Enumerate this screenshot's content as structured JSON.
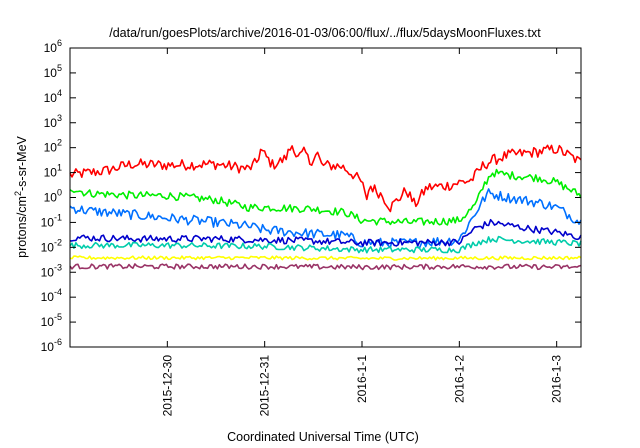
{
  "chart_data": {
    "type": "line",
    "title": "/data/run/goesPlots/archive/2016-01-03/06:00/flux/../flux/5daysMoonFluxes.txt",
    "xlabel": "Coordinated Universal Time (UTC)",
    "ylabel_parts": {
      "base": "protons/cm",
      "sup": "2",
      "rest": "-s-sr-MeV"
    },
    "x_unit": "days",
    "x_range": [
      "2015-12-29T00:00",
      "2016-01-03T06:00"
    ],
    "x_ticks": [
      {
        "date": "2015-12-30",
        "label": "2015-12-30"
      },
      {
        "date": "2015-12-31",
        "label": "2015-12-31"
      },
      {
        "date": "2016-01-01",
        "label": "2016-1-1"
      },
      {
        "date": "2016-01-02",
        "label": "2016-1-2"
      },
      {
        "date": "2016-01-03",
        "label": "2016-1-3"
      }
    ],
    "y_scale": "log",
    "ylim": [
      1e-06,
      1000000.0
    ],
    "y_ticks": [
      {
        "value": 1000000.0,
        "base": "10",
        "exp": "6"
      },
      {
        "value": 100000.0,
        "base": "10",
        "exp": "5"
      },
      {
        "value": 10000.0,
        "base": "10",
        "exp": "4"
      },
      {
        "value": 1000.0,
        "base": "10",
        "exp": "3"
      },
      {
        "value": 100.0,
        "base": "10",
        "exp": "2"
      },
      {
        "value": 10.0,
        "base": "10",
        "exp": "1"
      },
      {
        "value": 1.0,
        "base": "10",
        "exp": "0"
      },
      {
        "value": 0.1,
        "base": "10",
        "exp": "-1"
      },
      {
        "value": 0.01,
        "base": "10",
        "exp": "-2"
      },
      {
        "value": 0.001,
        "base": "10",
        "exp": "-3"
      },
      {
        "value": 0.0001,
        "base": "10",
        "exp": "-4"
      },
      {
        "value": 1e-05,
        "base": "10",
        "exp": "-5"
      },
      {
        "value": 1e-06,
        "base": "10",
        "exp": "-6"
      }
    ],
    "grid": false,
    "series": [
      {
        "color": "#ff0000",
        "noise": 0.22,
        "points": [
          [
            "2015-12-29T00:00",
            8
          ],
          [
            "2015-12-29T09:00",
            12
          ],
          [
            "2015-12-29T15:00",
            22
          ],
          [
            "2015-12-30T00:00",
            20
          ],
          [
            "2015-12-30T12:00",
            22
          ],
          [
            "2015-12-30T20:00",
            14
          ],
          [
            "2015-12-30T22:00",
            25
          ],
          [
            "2015-12-30T23:00",
            80
          ],
          [
            "2015-12-31T02:00",
            20
          ],
          [
            "2015-12-31T05:00",
            35
          ],
          [
            "2015-12-31T07:00",
            150
          ],
          [
            "2015-12-31T08:00",
            35
          ],
          [
            "2015-12-31T10:00",
            70
          ],
          [
            "2015-12-31T11:00",
            25
          ],
          [
            "2015-12-31T13:00",
            60
          ],
          [
            "2015-12-31T14:00",
            20
          ],
          [
            "2015-12-31T19:00",
            18
          ],
          [
            "2015-12-31T22:00",
            8
          ],
          [
            "2016-01-01T00:00",
            4
          ],
          [
            "2016-01-01T01:00",
            0.8
          ],
          [
            "2016-01-01T02:00",
            3
          ],
          [
            "2016-01-01T05:00",
            1.2
          ],
          [
            "2016-01-01T07:00",
            0.4
          ],
          [
            "2016-01-01T11:00",
            2
          ],
          [
            "2016-01-01T13:00",
            0.5
          ],
          [
            "2016-01-01T16:00",
            2.5
          ],
          [
            "2016-01-01T21:00",
            3
          ],
          [
            "2016-01-02T00:00",
            4
          ],
          [
            "2016-01-02T03:00",
            5
          ],
          [
            "2016-01-02T06:00",
            20
          ],
          [
            "2016-01-02T08:00",
            30
          ],
          [
            "2016-01-02T12:00",
            50
          ],
          [
            "2016-01-02T20:00",
            70
          ],
          [
            "2016-01-03T00:00",
            90
          ],
          [
            "2016-01-03T03:00",
            50
          ],
          [
            "2016-01-03T06:00",
            25
          ]
        ]
      },
      {
        "color": "#00ee00",
        "noise": 0.16,
        "points": [
          [
            "2015-12-29T00:00",
            2.5
          ],
          [
            "2015-12-29T04:00",
            1.5
          ],
          [
            "2015-12-29T16:00",
            1.2
          ],
          [
            "2015-12-30T00:00",
            1.2
          ],
          [
            "2015-12-30T12:00",
            0.8
          ],
          [
            "2015-12-30T20:00",
            0.4
          ],
          [
            "2015-12-31T00:00",
            0.4
          ],
          [
            "2015-12-31T12:00",
            0.35
          ],
          [
            "2015-12-31T20:00",
            0.25
          ],
          [
            "2016-01-01T00:00",
            0.12
          ],
          [
            "2016-01-01T12:00",
            0.1
          ],
          [
            "2016-01-02T00:00",
            0.12
          ],
          [
            "2016-01-02T04:00",
            0.5
          ],
          [
            "2016-01-02T06:00",
            3
          ],
          [
            "2016-01-02T08:00",
            10
          ],
          [
            "2016-01-02T12:00",
            8
          ],
          [
            "2016-01-02T20:00",
            6
          ],
          [
            "2016-01-03T00:00",
            4
          ],
          [
            "2016-01-03T06:00",
            1.2
          ]
        ]
      },
      {
        "color": "#0070ff",
        "noise": 0.2,
        "points": [
          [
            "2015-12-29T00:00",
            0.4
          ],
          [
            "2015-12-29T04:00",
            0.3
          ],
          [
            "2015-12-29T16:00",
            0.2
          ],
          [
            "2015-12-30T00:00",
            0.15
          ],
          [
            "2015-12-30T12:00",
            0.1
          ],
          [
            "2015-12-30T20:00",
            0.07
          ],
          [
            "2015-12-31T00:00",
            0.05
          ],
          [
            "2015-12-31T12:00",
            0.035
          ],
          [
            "2015-12-31T20:00",
            0.03
          ],
          [
            "2016-01-01T00:00",
            0.015
          ],
          [
            "2016-01-01T12:00",
            0.015
          ],
          [
            "2016-01-02T00:00",
            0.02
          ],
          [
            "2016-01-02T04:00",
            0.25
          ],
          [
            "2016-01-02T07:00",
            1.5
          ],
          [
            "2016-01-02T12:00",
            1
          ],
          [
            "2016-01-02T20:00",
            0.6
          ],
          [
            "2016-01-03T00:00",
            0.4
          ],
          [
            "2016-01-03T06:00",
            0.1
          ]
        ]
      },
      {
        "color": "#0000cc",
        "noise": 0.14,
        "points": [
          [
            "2015-12-29T00:00",
            0.025
          ],
          [
            "2015-12-29T16:00",
            0.022
          ],
          [
            "2015-12-30T12:00",
            0.022
          ],
          [
            "2015-12-31T00:00",
            0.02
          ],
          [
            "2015-12-31T12:00",
            0.018
          ],
          [
            "2016-01-01T00:00",
            0.015
          ],
          [
            "2016-01-02T00:00",
            0.016
          ],
          [
            "2016-01-02T04:00",
            0.06
          ],
          [
            "2016-01-02T08:00",
            0.1
          ],
          [
            "2016-01-02T16:00",
            0.06
          ],
          [
            "2016-01-03T00:00",
            0.04
          ],
          [
            "2016-01-03T06:00",
            0.025
          ]
        ]
      },
      {
        "color": "#00ccaa",
        "noise": 0.12,
        "points": [
          [
            "2015-12-29T00:00",
            0.012
          ],
          [
            "2015-12-30T00:00",
            0.012
          ],
          [
            "2015-12-31T00:00",
            0.011
          ],
          [
            "2016-01-01T00:00",
            0.008
          ],
          [
            "2016-01-02T00:00",
            0.008
          ],
          [
            "2016-01-02T04:00",
            0.015
          ],
          [
            "2016-01-02T08:00",
            0.022
          ],
          [
            "2016-01-02T16:00",
            0.018
          ],
          [
            "2016-01-03T00:00",
            0.016
          ],
          [
            "2016-01-03T06:00",
            0.014
          ]
        ]
      },
      {
        "color": "#ffff00",
        "noise": 0.07,
        "points": [
          [
            "2015-12-29T00:00",
            0.0038
          ],
          [
            "2015-12-31T00:00",
            0.0038
          ],
          [
            "2016-01-01T00:00",
            0.0036
          ],
          [
            "2016-01-02T00:00",
            0.0037
          ],
          [
            "2016-01-03T06:00",
            0.0038
          ]
        ]
      },
      {
        "color": "#993366",
        "noise": 0.1,
        "points": [
          [
            "2015-12-29T00:00",
            0.0017
          ],
          [
            "2015-12-31T00:00",
            0.0017
          ],
          [
            "2016-01-01T00:00",
            0.0016
          ],
          [
            "2016-01-02T00:00",
            0.0017
          ],
          [
            "2016-01-03T06:00",
            0.0016
          ]
        ]
      }
    ]
  }
}
